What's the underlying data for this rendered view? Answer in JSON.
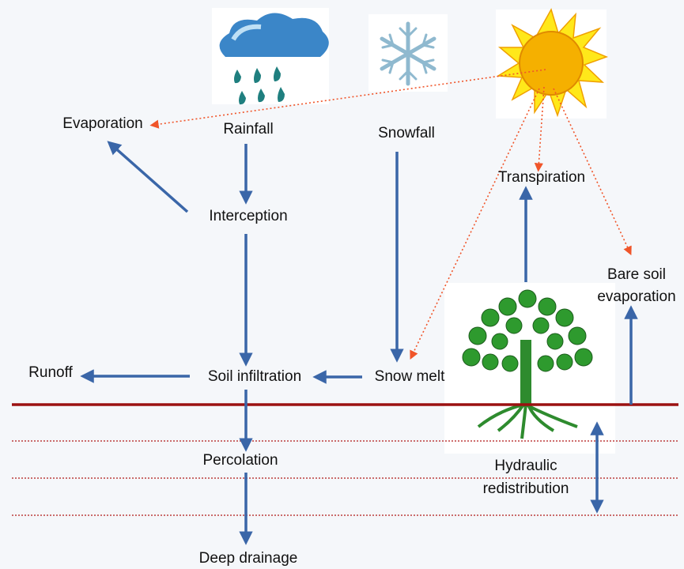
{
  "nodes": [
    {
      "label": "Evaporation"
    },
    {
      "label": "Rainfall"
    },
    {
      "label": "Snowfall"
    },
    {
      "label": "Transpiration"
    },
    {
      "label": "Interception"
    },
    {
      "label": [
        "Bare soil",
        "evaporation"
      ]
    },
    {
      "label": "Runoff"
    },
    {
      "label": "Soil infiltration"
    },
    {
      "label": "Snow melt"
    },
    {
      "label": "Percolation"
    },
    {
      "label": [
        "Hydraulic",
        "redistribution"
      ]
    },
    {
      "label": "Deep drainage"
    }
  ]
}
